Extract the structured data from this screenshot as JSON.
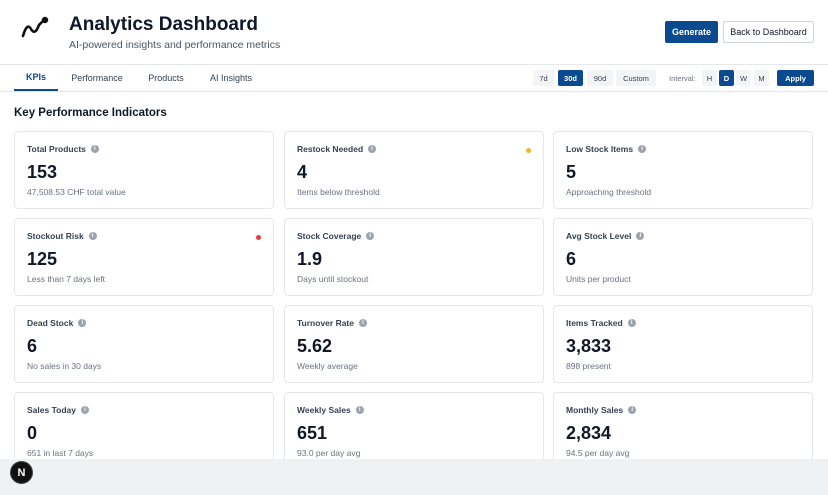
{
  "header": {
    "title": "Analytics Dashboard",
    "subtitle": "AI-powered insights and performance metrics",
    "generate_label": "Generate",
    "back_label": "Back to Dashboard"
  },
  "tabs": [
    {
      "label": "KPIs",
      "active": true
    },
    {
      "label": "Performance"
    },
    {
      "label": "Products"
    },
    {
      "label": "AI Insights"
    }
  ],
  "ranges": [
    {
      "label": "7d"
    },
    {
      "label": "30d",
      "active": true
    },
    {
      "label": "90d"
    },
    {
      "label": "Custom"
    }
  ],
  "interval": {
    "label": "Interval:",
    "options": [
      {
        "label": "H"
      },
      {
        "label": "D",
        "active": true
      },
      {
        "label": "W"
      },
      {
        "label": "M"
      }
    ],
    "apply_label": "Apply"
  },
  "section": {
    "title": "Key Performance Indicators"
  },
  "cards": [
    {
      "label": "Total Products",
      "value": "153",
      "sub": "47,508.53 CHF total value"
    },
    {
      "label": "Restock Needed",
      "value": "4",
      "sub": "Items below threshold",
      "dot_color": "#f0b429"
    },
    {
      "label": "Low Stock Items",
      "value": "5",
      "sub": "Approaching threshold"
    },
    {
      "label": "Stockout Risk",
      "value": "125",
      "sub": "Less than 7 days left",
      "dot_color": "#e53e3e"
    },
    {
      "label": "Stock Coverage",
      "value": "1.9",
      "sub": "Days until stockout"
    },
    {
      "label": "Avg Stock Level",
      "value": "6",
      "sub": "Units per product"
    },
    {
      "label": "Dead Stock",
      "value": "6",
      "sub": "No sales in 30 days"
    },
    {
      "label": "Turnover Rate",
      "value": "5.62",
      "sub": "Weekly average"
    },
    {
      "label": "Items Tracked",
      "value": "3,833",
      "sub": "898 present"
    },
    {
      "label": "Sales Today",
      "value": "0",
      "sub": "651 in last 7 days"
    },
    {
      "label": "Weekly Sales",
      "value": "651",
      "sub": "93.0 per day avg"
    },
    {
      "label": "Monthly Sales",
      "value": "2,834",
      "sub": "94.5 per day avg"
    }
  ],
  "dev_badge": {
    "label": "N"
  },
  "colors": {
    "primary": "#0b4a8f",
    "warning": "#f0b429",
    "danger": "#e53e3e"
  }
}
